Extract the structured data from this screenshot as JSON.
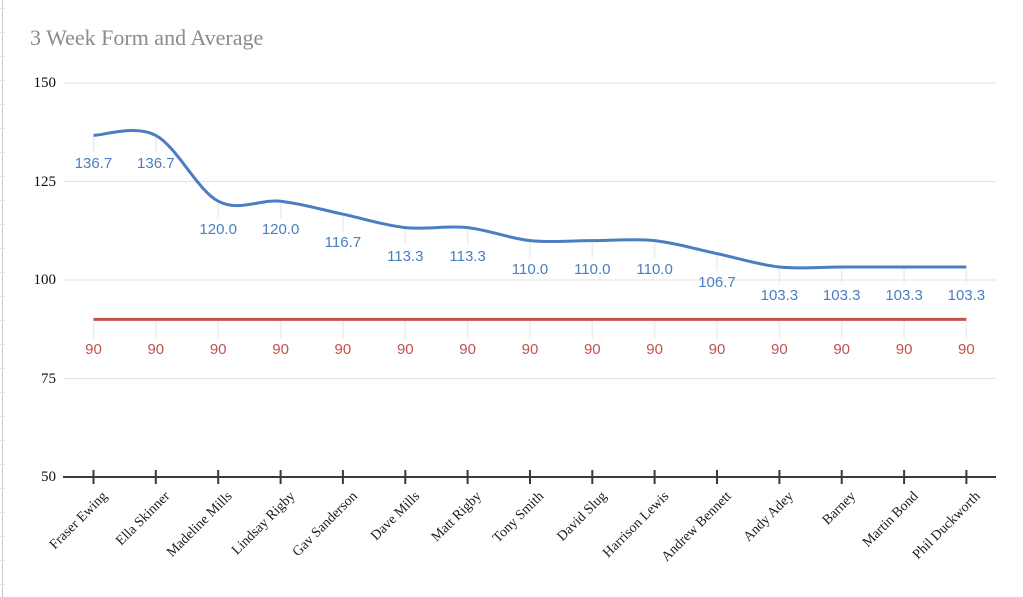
{
  "chart_data": {
    "type": "line",
    "title": "3 Week Form and Average",
    "categories": [
      "Fraser Ewing",
      "Ella Skinner",
      "Madeline Mills",
      "Lindsay Rigby",
      "Gav Sanderson",
      "Dave Mills",
      "Matt Rigby",
      "Tony Smith",
      "David Slug",
      "Harrison Lewis",
      "Andrew Bennett",
      "Andy Adey",
      "Barney",
      "Martin Bond",
      "Phil Duckworth"
    ],
    "series": [
      {
        "id": "form",
        "color": "#4a7ec1",
        "smooth": true,
        "values": [
          136.7,
          136.7,
          120.0,
          120.0,
          116.7,
          113.3,
          113.3,
          110.0,
          110.0,
          110.0,
          106.7,
          103.3,
          103.3,
          103.3,
          103.3
        ],
        "point_labels": [
          "136.7",
          "136.7",
          "120.0",
          "120.0",
          "116.7",
          "113.3",
          "113.3",
          "110.0",
          "110.0",
          "110.0",
          "106.7",
          "103.3",
          "103.3",
          "103.3",
          "103.3"
        ]
      },
      {
        "id": "average",
        "color": "#c5514d",
        "smooth": false,
        "values": [
          90,
          90,
          90,
          90,
          90,
          90,
          90,
          90,
          90,
          90,
          90,
          90,
          90,
          90,
          90
        ],
        "point_labels": [
          "90",
          "90",
          "90",
          "90",
          "90",
          "90",
          "90",
          "90",
          "90",
          "90",
          "90",
          "90",
          "90",
          "90",
          "90"
        ]
      }
    ],
    "ylim": [
      50,
      150
    ],
    "yticks": [
      150,
      125,
      100,
      75,
      50
    ],
    "grid": true,
    "legend_position": "none",
    "colors": {
      "axis": "#3a3a3a",
      "gridline": "#e3e3e3",
      "leader_line": "#ececec",
      "title_text": "#8b8b8b",
      "tick_text": "#111111"
    }
  }
}
